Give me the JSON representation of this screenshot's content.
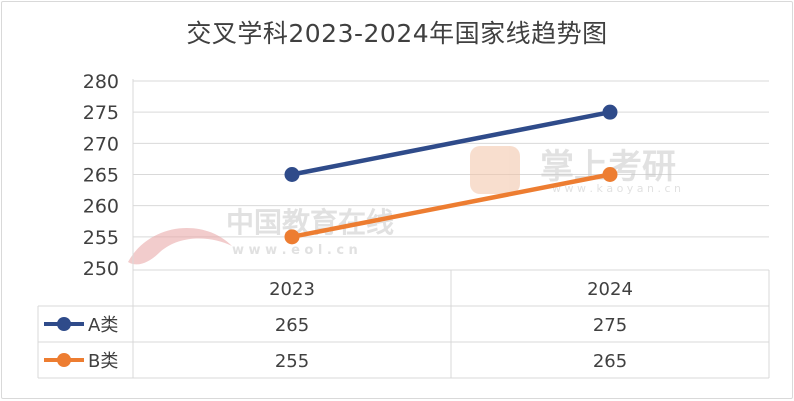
{
  "title": "交叉学科2023-2024年国家线趋势图",
  "watermarks": {
    "eol_cn": "中国教育在线",
    "eol_url": "w w w . e o l . c n",
    "kaoyan_cn": "掌上考研",
    "kaoyan_url": "w w w . k a o y a n . c n"
  },
  "chart_data": {
    "type": "line",
    "title": "交叉学科2023-2024年国家线趋势图",
    "categories": [
      "2023",
      "2024"
    ],
    "series": [
      {
        "name": "A类",
        "values": [
          265,
          275
        ],
        "color": "#2f4b8a"
      },
      {
        "name": "B类",
        "values": [
          255,
          265
        ],
        "color": "#ed7d31"
      }
    ],
    "yticks": [
      "250",
      "255",
      "260",
      "265",
      "270",
      "275",
      "280"
    ],
    "ylim": [
      250,
      280
    ],
    "grid": true,
    "data_table": true,
    "table_values": [
      [
        "265",
        "275"
      ],
      [
        "255",
        "265"
      ]
    ]
  }
}
